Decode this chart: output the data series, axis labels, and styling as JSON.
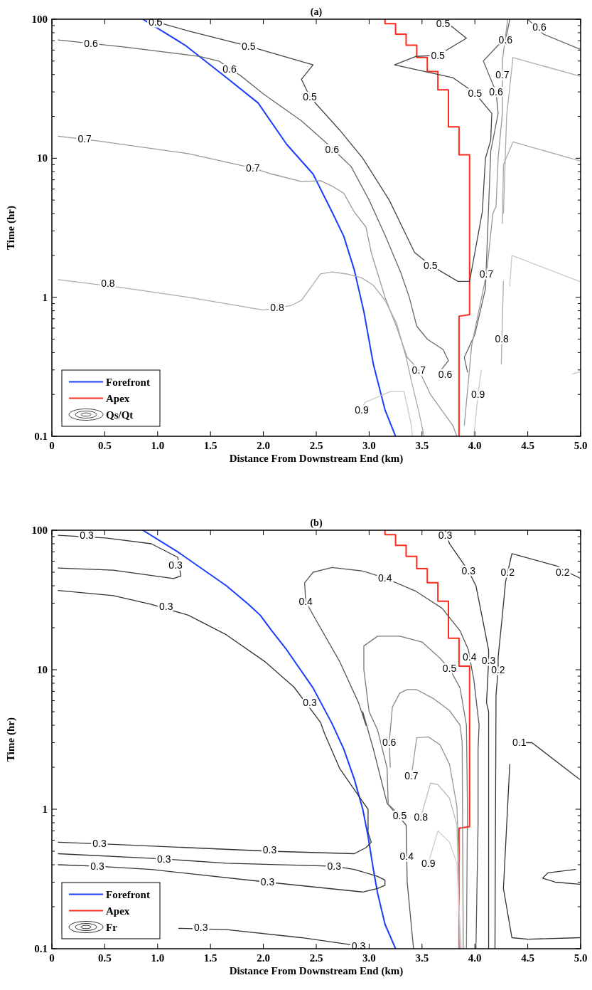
{
  "chart_data": [
    {
      "type": "line",
      "title": "(a)",
      "xlabel": "Distance From Downstream End (km)",
      "ylabel": "Time (hr)",
      "log": "y",
      "legend": "bottom left",
      "xlim": [
        0,
        5
      ],
      "xticks": [
        0,
        0.5,
        {
          "value": 1,
          "label": "1.0"
        },
        1.5,
        {
          "value": 2,
          "label": "2.0"
        },
        2.5,
        {
          "value": 3,
          "label": "3.0"
        },
        3.5,
        {
          "value": 4,
          "label": "4.0"
        },
        4.5,
        {
          "value": 5,
          "label": "5.0"
        }
      ],
      "ylim": [
        0.1,
        100
      ],
      "yticks": [
        0.1,
        {
          "value": 0.2,
          "label": null
        },
        {
          "value": 0.3,
          "label": null
        },
        {
          "value": 0.4,
          "label": null
        },
        {
          "value": 0.5,
          "label": null
        },
        {
          "value": 0.6,
          "label": null
        },
        {
          "value": 0.7,
          "label": null
        },
        {
          "value": 0.8,
          "label": null
        },
        {
          "value": 0.9,
          "label": null
        },
        1,
        {
          "value": 2,
          "label": null
        },
        {
          "value": 3,
          "label": null
        },
        {
          "value": 4,
          "label": null
        },
        {
          "value": 5,
          "label": null
        },
        {
          "value": 6,
          "label": null
        },
        {
          "value": 7,
          "label": null
        },
        {
          "value": 8,
          "label": null
        },
        {
          "value": 9,
          "label": null
        },
        10,
        {
          "value": 20,
          "label": null
        },
        {
          "value": 30,
          "label": null
        },
        {
          "value": 40,
          "label": null
        },
        {
          "value": 50,
          "label": null
        },
        {
          "value": 60,
          "label": null
        },
        {
          "value": 70,
          "label": null
        },
        {
          "value": 80,
          "label": null
        },
        {
          "value": 90,
          "label": null
        },
        100
      ],
      "series": [
        {
          "name": "Forefront",
          "color": "#1a3cff",
          "x": [
            0.86,
            1.26,
            1.65,
            1.95,
            2.22,
            2.47,
            2.65,
            2.76,
            2.86,
            2.95,
            3.04,
            3.15,
            3.25
          ],
          "values": [
            100,
            65,
            38,
            25,
            12.6,
            7.7,
            4.1,
            2.75,
            1.57,
            0.79,
            0.33,
            0.155,
            0.1
          ]
        },
        {
          "name": "Apex",
          "color": "#ff2a1a",
          "x": [
            3.15,
            3.15,
            3.25,
            3.25,
            3.35,
            3.35,
            3.45,
            3.45,
            3.55,
            3.55,
            3.65,
            3.65,
            3.75,
            3.75,
            3.85,
            3.85,
            3.95,
            3.95,
            3.85,
            3.85
          ],
          "values": [
            100,
            93,
            93,
            78,
            78,
            65,
            65,
            53,
            53,
            42,
            42,
            31,
            31,
            16.8,
            16.8,
            10.6,
            10.6,
            0.75,
            0.73,
            0.1
          ]
        },
        {
          "name": "Qs/Qt",
          "type": "line",
          "color": "#444444",
          "x": [
            0.9,
            1.3,
            1.86,
            2.47,
            2.36,
            2.44,
            2.72,
            2.94,
            3.19,
            3.35,
            3.43,
            3.58,
            3.84,
            3.95,
            4.0,
            4.07,
            4.1,
            4.15,
            4.16,
            4.0,
            3.79,
            3.24,
            3.44,
            3.65,
            3.92,
            3.78,
            3.7,
            3.66
          ],
          "values": [
            100,
            82,
            64,
            47,
            37,
            27.6,
            16,
            10,
            5,
            2.8,
            2.1,
            1.7,
            1.3,
            1.3,
            2.1,
            4.1,
            10,
            13.5,
            21,
            29.5,
            38,
            47,
            54,
            55,
            73,
            89,
            93,
            100
          ]
        },
        {
          "type": "line",
          "color": "#666666",
          "x": [
            0.06,
            0.69,
            1.4,
            1.58,
            1.79,
            2.0,
            2.36,
            2.61,
            2.83,
            3.0,
            3.15,
            3.3,
            3.38,
            3.45,
            3.55,
            3.7,
            3.75,
            3.68,
            3.72
          ],
          "values": [
            71,
            63,
            54,
            50,
            39,
            29,
            18.6,
            12.6,
            8.7,
            5,
            2.8,
            1.5,
            1.0,
            0.62,
            0.5,
            0.42,
            0.35,
            0.3,
            0.28
          ]
        },
        {
          "type": "line",
          "color": "#666666",
          "x": [
            3.93,
            3.9,
            4.0,
            4.1,
            4.15,
            4.22,
            4.2,
            4.08,
            4.22,
            4.29,
            4.33
          ],
          "values": [
            0.29,
            0.37,
            0.54,
            1.15,
            11.2,
            21,
            30,
            50,
            65,
            71,
            100
          ]
        },
        {
          "type": "line",
          "color": "#666666",
          "x": [
            4.5,
            4.65,
            4.99
          ],
          "values": [
            100,
            78,
            61
          ]
        },
        {
          "type": "line",
          "color": "#999999",
          "x": [
            0.06,
            0.44,
            1.29,
            1.9,
            2.08,
            2.36,
            2.54,
            2.65,
            2.76,
            2.86,
            2.97,
            3.02,
            3.15,
            3.26,
            3.36,
            3.47,
            3.58,
            3.79,
            3.83
          ],
          "values": [
            14.4,
            13.3,
            10.8,
            8.5,
            7.7,
            6.8,
            6.9,
            6.3,
            5.6,
            4.1,
            3.2,
            2.1,
            1.0,
            0.61,
            0.37,
            0.3,
            0.2,
            0.12,
            0.1
          ]
        },
        {
          "type": "line",
          "color": "#999999",
          "x": [
            3.9,
            3.97,
            4.11,
            4.17,
            4.2,
            4.22,
            4.26,
            4.26,
            4.26,
            4.31
          ],
          "values": [
            0.12,
            0.45,
            1.47,
            4,
            4.5,
            10,
            21,
            40,
            50,
            100
          ]
        },
        {
          "type": "line",
          "color": "#aaaaaa",
          "x": [
            4.26,
            4.27,
            4.36,
            4.99
          ],
          "values": [
            3.4,
            9,
            13.1,
            9.6
          ]
        },
        {
          "type": "line",
          "color": "#aaaaaa",
          "x": [
            4.27,
            4.3,
            4.36,
            4.99
          ],
          "values": [
            4,
            20,
            53,
            39
          ]
        },
        {
          "type": "line",
          "color": "#aaaaaa",
          "x": [
            0.06,
            0.64,
            1.29,
            2.0,
            2.26,
            2.36,
            2.54,
            2.65,
            2.79,
            2.93,
            3.04,
            3.15,
            3.26,
            3.35,
            3.4,
            3.47,
            3.52
          ],
          "values": [
            1.34,
            1.18,
            1.0,
            0.81,
            0.87,
            0.95,
            1.47,
            1.52,
            1.47,
            1.38,
            1.22,
            0.95,
            0.65,
            0.37,
            0.25,
            0.15,
            0.1
          ]
        },
        {
          "type": "line",
          "color": "#aaaaaa",
          "x": [
            4.25,
            4.26,
            4.27
          ],
          "values": [
            0.33,
            0.7,
            1.3
          ]
        },
        {
          "type": "line",
          "color": "#c8c8c8",
          "x": [
            4.33,
            4.35,
            4.99
          ],
          "values": [
            1.2,
            2.0,
            1.3
          ]
        },
        {
          "type": "line",
          "color": "#c8c8c8",
          "x": [
            2.93,
            2.96,
            3.2,
            3.33,
            3.4,
            3.41
          ],
          "values": [
            0.155,
            0.175,
            0.21,
            0.21,
            0.12,
            0.1
          ]
        },
        {
          "type": "line",
          "color": "#c8c8c8",
          "x": [
            4.06,
            4.03,
            4.0,
            3.99
          ],
          "values": [
            0.3,
            0.2,
            0.12,
            0.1
          ]
        },
        {
          "type": "line",
          "color": "#c8c8c8",
          "x": [
            4.92,
            4.99
          ],
          "values": [
            0.28,
            0.29
          ]
        }
      ],
      "annotations": [
        {
          "text": "0.5",
          "x": 0.98,
          "y": 95
        },
        {
          "text": "0.5",
          "x": 1.86,
          "y": 64
        },
        {
          "text": "0.5",
          "x": 2.44,
          "y": 27.6
        },
        {
          "text": "0.5",
          "x": 3.58,
          "y": 1.7
        },
        {
          "text": "0.5",
          "x": 4.0,
          "y": 29.5
        },
        {
          "text": "0.5",
          "x": 3.65,
          "y": 55
        },
        {
          "text": "0.5",
          "x": 3.7,
          "y": 93
        },
        {
          "text": "0.6",
          "x": 0.37,
          "y": 67
        },
        {
          "text": "0.6",
          "x": 1.68,
          "y": 44
        },
        {
          "text": "0.6",
          "x": 2.65,
          "y": 11.5
        },
        {
          "text": "0.6",
          "x": 3.72,
          "y": 0.28
        },
        {
          "text": "0.6",
          "x": 4.2,
          "y": 30
        },
        {
          "text": "0.6",
          "x": 4.29,
          "y": 71
        },
        {
          "text": "0.6",
          "x": 4.61,
          "y": 88
        },
        {
          "text": "0.7",
          "x": 0.31,
          "y": 13.8
        },
        {
          "text": "0.7",
          "x": 1.9,
          "y": 8.5
        },
        {
          "text": "0.7",
          "x": 3.47,
          "y": 0.3
        },
        {
          "text": "0.7",
          "x": 4.11,
          "y": 1.47
        },
        {
          "text": "0.7",
          "x": 4.26,
          "y": 40
        },
        {
          "text": "0.8",
          "x": 0.53,
          "y": 1.26
        },
        {
          "text": "0.8",
          "x": 2.13,
          "y": 0.84
        },
        {
          "text": "0.8",
          "x": 4.255,
          "y": 0.5
        },
        {
          "text": "0.9",
          "x": 2.93,
          "y": 0.155
        },
        {
          "text": "0.9",
          "x": 4.03,
          "y": 0.2
        }
      ]
    },
    {
      "type": "line",
      "title": "(b)",
      "xlabel": "Distance From Downstream End (km)",
      "ylabel": "Time (hr)",
      "log": "y",
      "legend": "bottom left",
      "xlim": [
        0,
        5
      ],
      "xticks": [
        0,
        0.5,
        {
          "value": 1,
          "label": "1.0"
        },
        1.5,
        {
          "value": 2,
          "label": "2.0"
        },
        2.5,
        {
          "value": 3,
          "label": "3.0"
        },
        3.5,
        {
          "value": 4,
          "label": "4.0"
        },
        4.5,
        {
          "value": 5,
          "label": "5.0"
        }
      ],
      "ylim": [
        0.1,
        100
      ],
      "yticks": [
        0.1,
        {
          "value": 0.2,
          "label": null
        },
        {
          "value": 0.3,
          "label": null
        },
        {
          "value": 0.4,
          "label": null
        },
        {
          "value": 0.5,
          "label": null
        },
        {
          "value": 0.6,
          "label": null
        },
        {
          "value": 0.7,
          "label": null
        },
        {
          "value": 0.8,
          "label": null
        },
        {
          "value": 0.9,
          "label": null
        },
        1,
        {
          "value": 2,
          "label": null
        },
        {
          "value": 3,
          "label": null
        },
        {
          "value": 4,
          "label": null
        },
        {
          "value": 5,
          "label": null
        },
        {
          "value": 6,
          "label": null
        },
        {
          "value": 7,
          "label": null
        },
        {
          "value": 8,
          "label": null
        },
        {
          "value": 9,
          "label": null
        },
        10,
        {
          "value": 20,
          "label": null
        },
        {
          "value": 30,
          "label": null
        },
        {
          "value": 40,
          "label": null
        },
        {
          "value": 50,
          "label": null
        },
        {
          "value": 60,
          "label": null
        },
        {
          "value": 70,
          "label": null
        },
        {
          "value": 80,
          "label": null
        },
        {
          "value": 90,
          "label": null
        },
        100
      ],
      "series": [
        {
          "name": "Forefront",
          "color": "#1a3cff",
          "x": [
            0.86,
            1.19,
            1.65,
            1.86,
            1.97,
            2.08,
            2.22,
            2.47,
            2.65,
            2.76,
            2.86,
            2.94,
            2.99,
            3.04,
            3.08,
            3.15,
            3.25
          ],
          "values": [
            100,
            70,
            40,
            29.4,
            24.6,
            19,
            13.9,
            7.4,
            4.1,
            2.7,
            1.64,
            1.0,
            0.64,
            0.37,
            0.25,
            0.15,
            0.1
          ]
        },
        {
          "name": "Apex",
          "color": "#ff2a1a",
          "x": [
            3.15,
            3.15,
            3.25,
            3.25,
            3.35,
            3.35,
            3.45,
            3.45,
            3.55,
            3.55,
            3.65,
            3.65,
            3.75,
            3.75,
            3.85,
            3.85,
            3.95,
            3.95,
            3.85,
            3.85
          ],
          "values": [
            100,
            93,
            93,
            78,
            78,
            65,
            65,
            53,
            53,
            42,
            42,
            31,
            31,
            16.8,
            16.8,
            10.6,
            10.6,
            0.75,
            0.73,
            0.1
          ]
        },
        {
          "name": "Fr",
          "type": "line",
          "color": "#333333",
          "x": [
            0.06,
            0.51,
            0.94,
            1.19,
            1.22,
            1.15,
            0.58,
            0.06
          ],
          "values": [
            92,
            88,
            80,
            64,
            47,
            45,
            51.7,
            53.6
          ]
        },
        {
          "type": "line",
          "color": "#333333",
          "x": [
            0.06,
            0.58,
            0.94,
            1.29,
            1.65,
            2.01,
            2.29,
            2.54,
            2.58,
            2.72,
            2.89,
            2.99,
            2.99,
            3.02,
            2.97,
            2.86,
            2.06,
            0.58,
            0.06
          ],
          "values": [
            37,
            34,
            29.4,
            24.6,
            17.8,
            11.5,
            7.5,
            4.2,
            3.46,
            1.97,
            1.28,
            1.0,
            0.68,
            0.58,
            0.53,
            0.48,
            0.5,
            0.56,
            0.58
          ]
        },
        {
          "type": "line",
          "color": "#333333",
          "x": [
            0.06,
            1.06,
            1.65,
            2.67,
            2.86,
            3.08,
            3.15,
            3.15,
            3.08,
            2.94,
            2.04,
            0.94,
            0.43,
            0.06
          ],
          "values": [
            0.48,
            0.44,
            0.41,
            0.39,
            0.37,
            0.33,
            0.31,
            0.285,
            0.27,
            0.255,
            0.3,
            0.37,
            0.39,
            0.4
          ]
        },
        {
          "type": "line",
          "color": "#333333",
          "x": [
            1.2,
            1.65,
            2.36,
            2.9
          ],
          "values": [
            0.14,
            0.137,
            0.12,
            0.105
          ]
        },
        {
          "type": "line",
          "color": "#333333",
          "x": [
            3.72,
            3.76,
            3.94,
            4.01,
            4.08,
            4.13,
            4.13,
            4.11,
            4.13,
            4.13
          ],
          "values": [
            100,
            80,
            51,
            40,
            21.6,
            13.8,
            11.6,
            5.8,
            5,
            0.1
          ]
        },
        {
          "type": "line",
          "color": "#333333",
          "x": [
            4.99,
            4.83,
            4.79,
            4.35,
            4.31,
            4.29,
            4.26,
            4.22,
            4.22,
            4.2,
            4.19
          ],
          "values": [
            45.5,
            52,
            55,
            68,
            50,
            42.6,
            24.6,
            12.3,
            10,
            6.6,
            0.1
          ]
        },
        {
          "type": "line",
          "color": "#333333",
          "x": [
            4.42,
            4.54,
            4.99
          ],
          "values": [
            3,
            3,
            1.64
          ]
        },
        {
          "type": "line",
          "color": "#333333",
          "x": [
            4.33,
            4.27,
            4.35,
            4.5,
            4.99
          ],
          "values": [
            2.1,
            0.27,
            0.12,
            0.117,
            0.12
          ]
        },
        {
          "type": "line",
          "color": "#333333",
          "x": [
            4.95,
            4.69,
            4.64,
            4.76,
            4.99
          ],
          "values": [
            0.37,
            0.35,
            0.32,
            0.3,
            0.29
          ]
        },
        {
          "type": "line",
          "color": "#555555",
          "x": [
            3.42,
            3.36,
            3.35,
            3.17,
            3.04,
            2.94,
            2.97,
            2.9,
            2.72,
            2.47,
            2.4,
            2.39,
            2.47,
            2.65,
            2.94,
            3.15,
            3.44,
            3.69,
            3.86,
            3.94,
            3.95,
            3.99,
            4.04,
            4.03,
            4.03,
            4.01
          ],
          "values": [
            0.1,
            0.3,
            0.77,
            1.1,
            2.7,
            5,
            4,
            5.8,
            11.5,
            24.7,
            31,
            42,
            50,
            54,
            51,
            45.5,
            36.6,
            27.6,
            19,
            13.8,
            12.3,
            8.5,
            4,
            2.7,
            0.77,
            0.1
          ]
        },
        {
          "type": "line",
          "color": "#777777",
          "x": [
            3.29,
            3.18,
            3.17,
            3.08,
            3.0,
            2.95,
            2.95,
            3.08,
            3.29,
            3.5,
            3.66,
            3.76,
            3.86,
            3.92,
            3.93,
            3.92
          ],
          "values": [
            0.9,
            1.09,
            1.97,
            3.7,
            5,
            10,
            14.8,
            17.4,
            17.4,
            15.8,
            12.3,
            10.2,
            7.4,
            4,
            1.0,
            0.1
          ]
        },
        {
          "type": "line",
          "color": "#888888",
          "x": [
            3.2,
            3.19,
            3.22,
            3.29,
            3.36,
            3.45,
            3.61,
            3.76,
            3.86,
            3.88,
            3.89
          ],
          "values": [
            2.0,
            3.0,
            5.4,
            6.8,
            7.2,
            7.2,
            6.2,
            5.1,
            4,
            3,
            0.1
          ]
        },
        {
          "type": "line",
          "color": "#999999",
          "x": [
            3.4,
            3.45,
            3.56,
            3.67,
            3.76,
            3.83,
            3.85,
            3.85
          ],
          "values": [
            1.74,
            3.25,
            3.3,
            2.9,
            2.1,
            1.05,
            0.41,
            0.1
          ]
        },
        {
          "type": "line",
          "color": "#bbbbbb",
          "x": [
            3.49,
            3.58,
            3.65,
            3.76,
            3.83,
            3.86
          ],
          "values": [
            0.88,
            1.54,
            1.5,
            1.2,
            0.77,
            0.1
          ]
        },
        {
          "type": "line",
          "color": "#cccccc",
          "x": [
            3.56,
            3.65,
            3.76,
            3.83,
            3.87
          ],
          "values": [
            0.41,
            0.7,
            0.58,
            0.41,
            0.1
          ]
        }
      ],
      "annotations": [
        {
          "text": "0.3",
          "x": 0.33,
          "y": 92
        },
        {
          "text": "0.3",
          "x": 1.17,
          "y": 56
        },
        {
          "text": "0.3",
          "x": 1.08,
          "y": 28.5
        },
        {
          "text": "0.3",
          "x": 2.44,
          "y": 5.8
        },
        {
          "text": "0.3",
          "x": 0.45,
          "y": 0.57
        },
        {
          "text": "0.3",
          "x": 2.06,
          "y": 0.51
        },
        {
          "text": "0.3",
          "x": 1.06,
          "y": 0.44
        },
        {
          "text": "0.3",
          "x": 2.67,
          "y": 0.39
        },
        {
          "text": "0.3",
          "x": 0.43,
          "y": 0.39
        },
        {
          "text": "0.3",
          "x": 2.04,
          "y": 0.3
        },
        {
          "text": "0.3",
          "x": 1.41,
          "y": 0.142
        },
        {
          "text": "0.3",
          "x": 2.9,
          "y": 0.105
        },
        {
          "text": "0.3",
          "x": 3.72,
          "y": 92
        },
        {
          "text": "0.3",
          "x": 3.94,
          "y": 51
        },
        {
          "text": "0.3",
          "x": 4.13,
          "y": 11.6
        },
        {
          "text": "0.2",
          "x": 4.31,
          "y": 50
        },
        {
          "text": "0.2",
          "x": 4.83,
          "y": 50
        },
        {
          "text": "0.2",
          "x": 4.22,
          "y": 10
        },
        {
          "text": "0.1",
          "x": 4.42,
          "y": 3
        },
        {
          "text": "0.4",
          "x": 3.15,
          "y": 45.5
        },
        {
          "text": "0.4",
          "x": 2.4,
          "y": 31
        },
        {
          "text": "0.4",
          "x": 3.95,
          "y": 12.3
        },
        {
          "text": "0.4",
          "x": 3.355,
          "y": 0.46
        },
        {
          "text": "0.5",
          "x": 3.76,
          "y": 10.2
        },
        {
          "text": "0.5",
          "x": 3.29,
          "y": 0.9
        },
        {
          "text": "0.6",
          "x": 3.19,
          "y": 3.0
        },
        {
          "text": "0.7",
          "x": 3.4,
          "y": 1.74
        },
        {
          "text": "0.8",
          "x": 3.49,
          "y": 0.88
        },
        {
          "text": "0.9",
          "x": 3.56,
          "y": 0.41
        }
      ]
    }
  ]
}
